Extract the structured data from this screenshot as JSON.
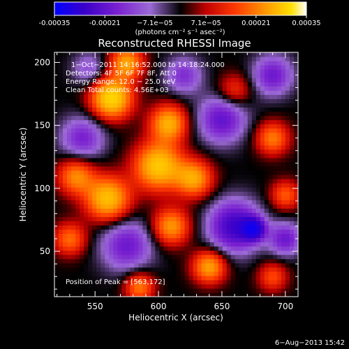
{
  "colors": {
    "background": "#000000",
    "text": "#ffffff",
    "colormap": [
      "#0000ff",
      "#3a00c8",
      "#7a20d0",
      "#9b6ad6",
      "#000000",
      "#c00000",
      "#ff3b00",
      "#ff9a00",
      "#ffe000",
      "#ffffff"
    ]
  },
  "colorbar": {
    "ticks": [
      "-0.00035",
      "-0.00021",
      "−7.1e−05",
      "7.1e−05",
      "0.00021",
      "0.00035"
    ],
    "tick_values": [
      -0.00035,
      -0.00021,
      -7.1e-05,
      7.1e-05,
      0.00021,
      0.00035
    ],
    "range": [
      -0.00035,
      0.00035
    ],
    "units": "(photons cm⁻² s⁻¹ asec⁻²)"
  },
  "chart_data": {
    "type": "heatmap",
    "title": "Reconstructed RHESSI Image",
    "xlabel": "Heliocentric X (arcsec)",
    "ylabel": "Heliocentric Y (arcsec)",
    "xlim": [
      518,
      710
    ],
    "ylim": [
      14,
      208
    ],
    "x_ticks": [
      550,
      600,
      650,
      700
    ],
    "y_ticks": [
      50,
      100,
      150,
      200
    ],
    "x_tick_labels": [
      "550",
      "600",
      "650",
      "700"
    ],
    "y_tick_labels": [
      "50",
      "100",
      "150",
      "200"
    ],
    "annotations": [
      "1−Oct−2011 14:16:52.000 to 14:18:24.000",
      "Detectors: 4F 5F 6F 7F 8F, Att 0",
      "Energy Range: 12.0 − 25.0 keV",
      "Clean     Total counts: 4.56E+03"
    ],
    "peak_label": "Position of Peak = [563,172]",
    "peak": [
      563,
      172
    ],
    "sources": [
      {
        "x": 563,
        "y": 172,
        "amp": 1.0,
        "s": 11
      },
      {
        "x": 575,
        "y": 200,
        "amp": 0.7,
        "s": 9
      },
      {
        "x": 608,
        "y": 152,
        "amp": 0.75,
        "s": 10
      },
      {
        "x": 600,
        "y": 118,
        "amp": 0.9,
        "s": 13
      },
      {
        "x": 560,
        "y": 92,
        "amp": 0.85,
        "s": 12
      },
      {
        "x": 535,
        "y": 110,
        "amp": 0.6,
        "s": 10
      },
      {
        "x": 628,
        "y": 108,
        "amp": 0.7,
        "s": 10
      },
      {
        "x": 610,
        "y": 70,
        "amp": 0.65,
        "s": 10
      },
      {
        "x": 640,
        "y": 38,
        "amp": 0.7,
        "s": 9
      },
      {
        "x": 690,
        "y": 140,
        "amp": 0.55,
        "s": 9
      },
      {
        "x": 700,
        "y": 95,
        "amp": 0.45,
        "s": 8
      },
      {
        "x": 660,
        "y": 178,
        "amp": 0.35,
        "s": 9
      },
      {
        "x": 530,
        "y": 60,
        "amp": 0.5,
        "s": 9
      },
      {
        "x": 585,
        "y": 22,
        "amp": 0.55,
        "s": 8
      },
      {
        "x": 690,
        "y": 30,
        "amp": 0.4,
        "s": 8
      },
      {
        "x": 540,
        "y": 140,
        "amp": -0.45,
        "s": 12
      },
      {
        "x": 575,
        "y": 55,
        "amp": -0.5,
        "s": 14
      },
      {
        "x": 650,
        "y": 155,
        "amp": -0.55,
        "s": 13
      },
      {
        "x": 660,
        "y": 70,
        "amp": -0.75,
        "s": 14
      },
      {
        "x": 675,
        "y": 68,
        "amp": -0.9,
        "s": 6
      },
      {
        "x": 690,
        "y": 190,
        "amp": -0.5,
        "s": 11
      },
      {
        "x": 620,
        "y": 190,
        "amp": -0.4,
        "s": 10
      },
      {
        "x": 545,
        "y": 195,
        "amp": -0.3,
        "s": 9
      },
      {
        "x": 700,
        "y": 60,
        "amp": -0.5,
        "s": 9
      }
    ]
  },
  "footer": {
    "date": "6−Aug−2013 15:42"
  }
}
